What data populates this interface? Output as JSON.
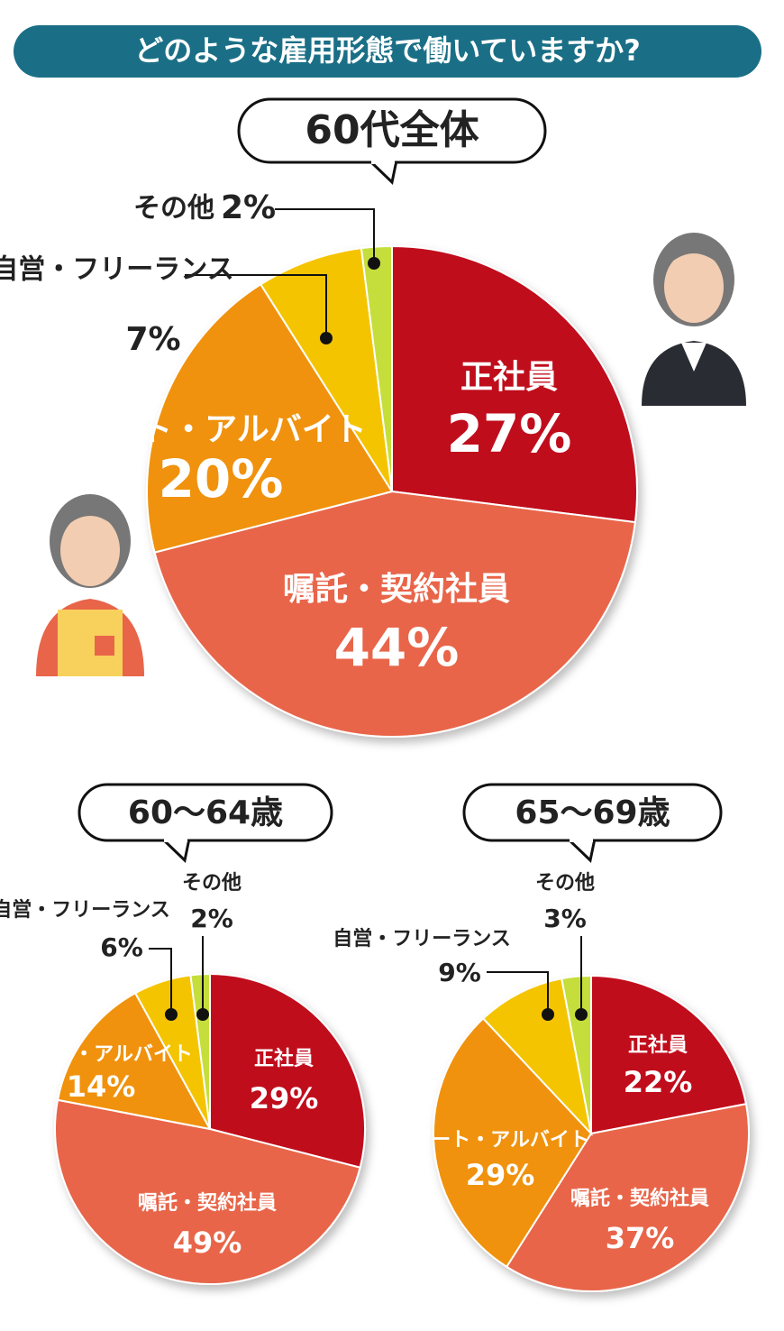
{
  "title": "どのような雇用形態で働いていますか?",
  "chart_data": [
    {
      "type": "pie",
      "title": "60代全体",
      "categories": [
        "正社員",
        "嘱託・契約社員",
        "パート・アルバイト",
        "自営・フリーランス",
        "その他"
      ],
      "values": [
        27,
        44,
        20,
        7,
        2
      ],
      "value_labels": [
        "27%",
        "44%",
        "20%",
        "7%",
        "2%"
      ],
      "colors": [
        "#c0111f",
        "#e8654a",
        "#f0920a",
        "#f5c400",
        "#c5de3a"
      ]
    },
    {
      "type": "pie",
      "title": "60〜64歳",
      "categories": [
        "正社員",
        "嘱託・契約社員",
        "パート・アルバイト",
        "自営・フリーランス",
        "その他"
      ],
      "values": [
        29,
        49,
        14,
        6,
        2
      ],
      "value_labels": [
        "29%",
        "49%",
        "14%",
        "6%",
        "2%"
      ],
      "colors": [
        "#c0111f",
        "#e8654a",
        "#f0920a",
        "#f5c400",
        "#c5de3a"
      ]
    },
    {
      "type": "pie",
      "title": "65〜69歳",
      "categories": [
        "正社員",
        "嘱託・契約社員",
        "パート・アルバイト",
        "自営・フリーランス",
        "その他"
      ],
      "values": [
        22,
        37,
        29,
        9,
        3
      ],
      "value_labels": [
        "22%",
        "37%",
        "29%",
        "9%",
        "3%"
      ],
      "colors": [
        "#c0111f",
        "#e8654a",
        "#f0920a",
        "#f5c400",
        "#c5de3a"
      ]
    }
  ]
}
